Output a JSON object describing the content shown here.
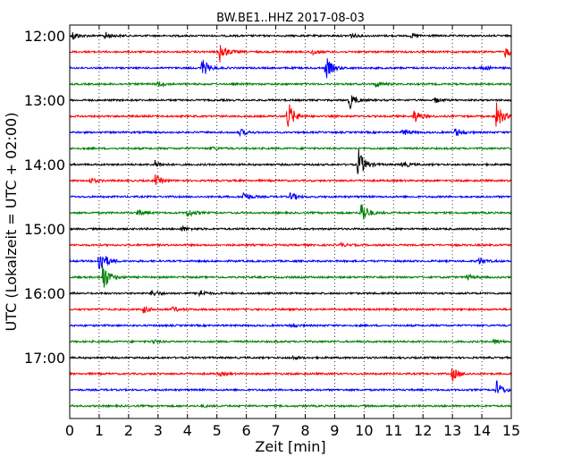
{
  "chart_data": {
    "type": "line",
    "title": "BW.BE1..HHZ 2017-08-03",
    "xlabel": "Zeit  [min]",
    "ylabel": "UTC (Lokalzeit = UTC + 02:00)",
    "xlim": [
      0,
      15
    ],
    "x_ticks": [
      "0",
      "1",
      "2",
      "3",
      "4",
      "5",
      "6",
      "7",
      "8",
      "9",
      "10",
      "11",
      "12",
      "13",
      "14",
      "15"
    ],
    "y_tick_labels": [
      "12:00",
      "13:00",
      "14:00",
      "15:00",
      "16:00",
      "17:00"
    ],
    "grid": "vertical dotted at each minute",
    "series_colors": [
      "#000000",
      "#ff0000",
      "#0000ff",
      "#008000"
    ],
    "traces": [
      {
        "start": "12:00",
        "events": [
          {
            "t": 0.1,
            "amp": 5
          },
          {
            "t": 1.2,
            "amp": 4
          },
          {
            "t": 9.5,
            "amp": 3
          },
          {
            "t": 11.6,
            "amp": 2
          }
        ]
      },
      {
        "start": "12:15",
        "events": [
          {
            "t": 5.1,
            "amp": 12
          },
          {
            "t": 8.2,
            "amp": 4
          },
          {
            "t": 14.8,
            "amp": 6
          }
        ]
      },
      {
        "start": "12:30",
        "events": [
          {
            "t": 4.5,
            "amp": 11
          },
          {
            "t": 8.7,
            "amp": 13
          },
          {
            "t": 14.0,
            "amp": 3
          }
        ]
      },
      {
        "start": "12:45",
        "events": [
          {
            "t": 3.0,
            "amp": 3
          },
          {
            "t": 10.4,
            "amp": 3
          }
        ]
      },
      {
        "start": "13:00",
        "events": [
          {
            "t": 9.5,
            "amp": 10
          },
          {
            "t": 12.4,
            "amp": 3
          }
        ]
      },
      {
        "start": "13:15",
        "events": [
          {
            "t": 7.4,
            "amp": 18
          },
          {
            "t": 11.7,
            "amp": 8
          },
          {
            "t": 14.5,
            "amp": 16
          }
        ]
      },
      {
        "start": "13:30",
        "events": [
          {
            "t": 5.8,
            "amp": 4
          },
          {
            "t": 11.3,
            "amp": 4
          },
          {
            "t": 13.1,
            "amp": 5
          }
        ]
      },
      {
        "start": "13:45",
        "events": [
          {
            "t": 4.8,
            "amp": 2
          }
        ]
      },
      {
        "start": "14:00",
        "events": [
          {
            "t": 2.9,
            "amp": 4
          },
          {
            "t": 9.8,
            "amp": 18
          },
          {
            "t": 11.3,
            "amp": 4
          }
        ]
      },
      {
        "start": "14:15",
        "events": [
          {
            "t": 2.9,
            "amp": 6
          },
          {
            "t": 0.7,
            "amp": 3
          }
        ]
      },
      {
        "start": "14:30",
        "events": [
          {
            "t": 5.9,
            "amp": 6
          },
          {
            "t": 7.5,
            "amp": 5
          }
        ]
      },
      {
        "start": "14:45",
        "events": [
          {
            "t": 2.3,
            "amp": 4
          },
          {
            "t": 4.0,
            "amp": 5
          },
          {
            "t": 9.9,
            "amp": 15
          }
        ]
      },
      {
        "start": "15:00",
        "events": [
          {
            "t": 3.8,
            "amp": 3
          }
        ]
      },
      {
        "start": "15:15",
        "events": [
          {
            "t": 9.2,
            "amp": 2
          }
        ]
      },
      {
        "start": "15:30",
        "events": [
          {
            "t": 1.0,
            "amp": 18
          },
          {
            "t": 13.9,
            "amp": 4
          }
        ]
      },
      {
        "start": "15:45",
        "events": [
          {
            "t": 1.1,
            "amp": 20
          },
          {
            "t": 13.5,
            "amp": 3
          }
        ]
      },
      {
        "start": "16:00",
        "events": [
          {
            "t": 2.8,
            "amp": 4
          },
          {
            "t": 4.4,
            "amp": 4
          }
        ]
      },
      {
        "start": "16:15",
        "events": [
          {
            "t": 2.5,
            "amp": 4
          },
          {
            "t": 3.5,
            "amp": 3
          }
        ]
      },
      {
        "start": "16:30",
        "events": [
          {
            "t": 7.5,
            "amp": 2
          }
        ]
      },
      {
        "start": "16:45",
        "events": [
          {
            "t": 2.8,
            "amp": 2
          },
          {
            "t": 14.4,
            "amp": 3
          }
        ]
      },
      {
        "start": "17:00",
        "events": [
          {
            "t": 7.5,
            "amp": 2
          }
        ]
      },
      {
        "start": "17:15",
        "events": [
          {
            "t": 13.0,
            "amp": 8
          },
          {
            "t": 5.1,
            "amp": 2
          }
        ]
      },
      {
        "start": "17:30",
        "events": [
          {
            "t": 14.5,
            "amp": 10
          }
        ]
      },
      {
        "start": "17:45",
        "events": [
          {
            "t": 4.5,
            "amp": 1
          }
        ]
      }
    ]
  }
}
